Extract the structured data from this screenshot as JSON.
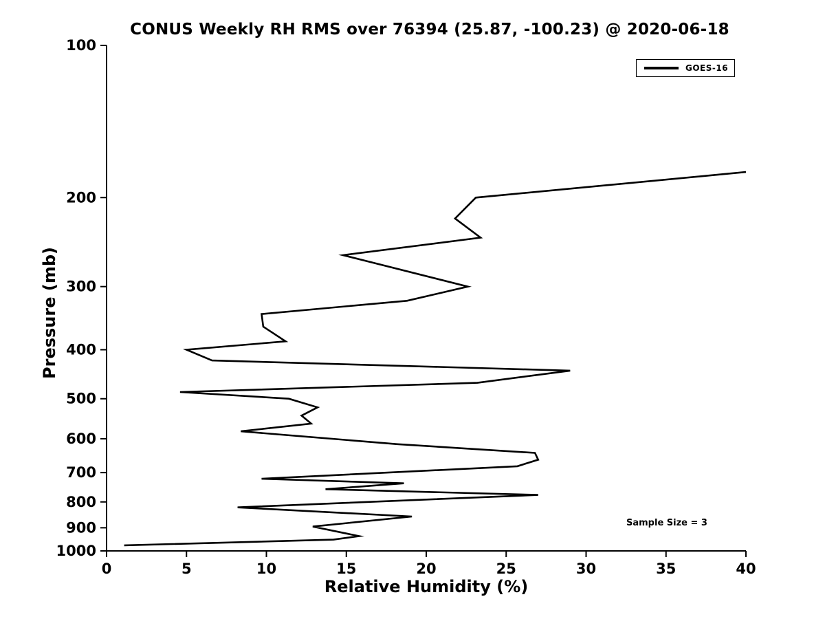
{
  "chart_data": {
    "type": "line",
    "title": "CONUS Weekly RH RMS over 76394 (25.87, -100.23) @ 2020-06-18",
    "xlabel": "Relative Humidity (%)",
    "ylabel": "Pressure (mb)",
    "annotation": "Sample Size = 3",
    "xlim": [
      0,
      40
    ],
    "ylim": [
      100,
      1000
    ],
    "yscale": "log",
    "y_direction": "pressure-increases-downward",
    "xticks": [
      0,
      5,
      10,
      15,
      20,
      25,
      30,
      35,
      40
    ],
    "yticks": [
      100,
      200,
      300,
      400,
      500,
      600,
      700,
      800,
      900,
      1000
    ],
    "grid": false,
    "legend_position": "upper-right",
    "background_color": "#ffffff",
    "axis_color": "#000000",
    "series": [
      {
        "name": "GOES-16",
        "color": "#000000",
        "pressure_mb": [
          178,
          200,
          220,
          240,
          260,
          300,
          320,
          340,
          360,
          385,
          400,
          420,
          440,
          465,
          485,
          500,
          520,
          540,
          560,
          580,
          615,
          640,
          660,
          680,
          720,
          735,
          755,
          775,
          820,
          855,
          895,
          935,
          950,
          975
        ],
        "rh_percent": [
          40.0,
          23.1,
          21.8,
          23.4,
          14.8,
          22.6,
          18.8,
          9.7,
          9.8,
          11.2,
          5.0,
          6.6,
          29.0,
          23.2,
          4.6,
          11.4,
          13.2,
          12.2,
          12.8,
          8.4,
          18.2,
          26.8,
          27.0,
          25.7,
          9.7,
          18.6,
          13.7,
          27.0,
          8.2,
          19.1,
          12.9,
          15.8,
          14.2,
          1.1
        ]
      }
    ]
  }
}
